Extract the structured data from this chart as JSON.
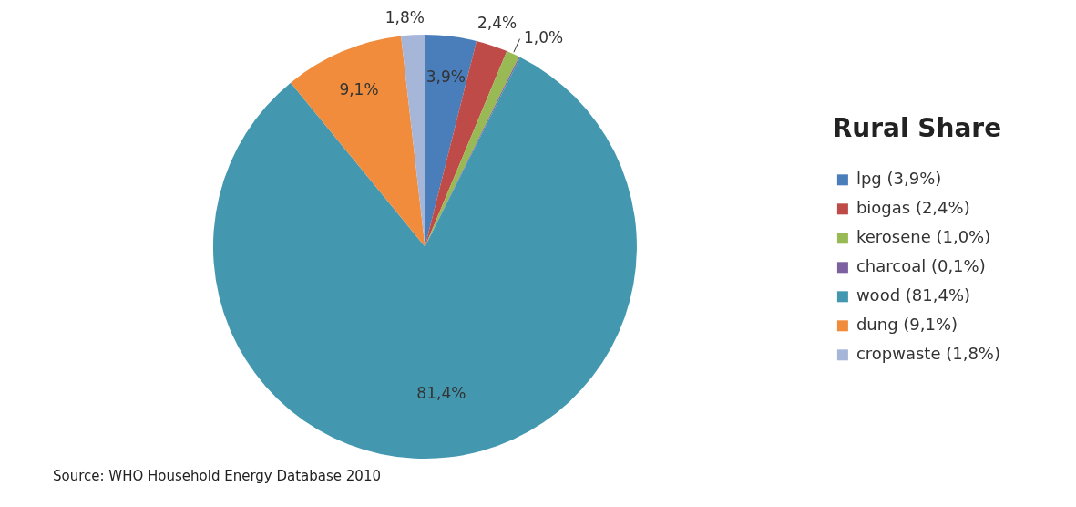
{
  "chart_data": {
    "type": "pie",
    "legend_title": "Rural Share",
    "legend": "right",
    "categories": [
      "lpg (3,9%)",
      "biogas (2,4%)",
      "kerosene (1,0%)",
      "charcoal (0,1%)",
      "wood (81,4%)",
      "dung (9,1%)",
      "cropwaste (1,8%)"
    ],
    "values": [
      3.9,
      2.4,
      1.0,
      0.1,
      81.4,
      9.1,
      1.8
    ],
    "value_labels": [
      "3,9%",
      "2,4%",
      "1,0%",
      null,
      "81,4%",
      "9,1%",
      "1,8%"
    ],
    "colors": [
      "#4a7ebb",
      "#be4b48",
      "#98b954",
      "#7d60a0",
      "#4398b0",
      "#f08c3c",
      "#a5b6d9"
    ],
    "annotations": [
      "Source: WHO Household Energy Database 2010"
    ]
  }
}
